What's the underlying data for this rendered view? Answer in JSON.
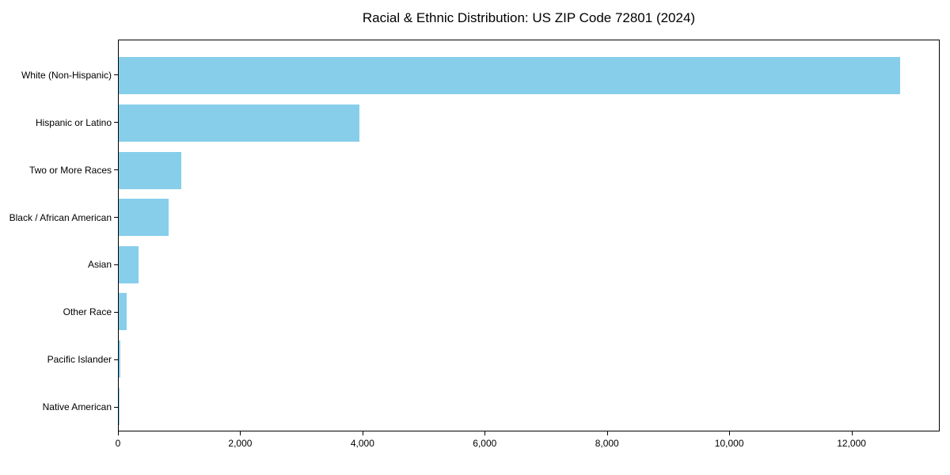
{
  "chart_data": {
    "type": "bar",
    "orientation": "horizontal",
    "title": "Racial & Ethnic Distribution: US ZIP Code 72801 (2024)",
    "categories": [
      "White (Non-Hispanic)",
      "Hispanic or Latino",
      "Two or More Races",
      "Black / African American",
      "Asian",
      "Other Race",
      "Pacific Islander",
      "Native American"
    ],
    "values": [
      12790,
      3940,
      1030,
      820,
      320,
      125,
      25,
      5
    ],
    "xlabel": "",
    "ylabel": "",
    "xlim": [
      0,
      13430
    ],
    "x_ticks": [
      0,
      2000,
      4000,
      6000,
      8000,
      10000,
      12000
    ],
    "x_tick_labels": [
      "0",
      "2,000",
      "4,000",
      "6,000",
      "8,000",
      "10,000",
      "12,000"
    ],
    "bar_color": "#87CEEB",
    "grid": false,
    "legend": "none"
  }
}
